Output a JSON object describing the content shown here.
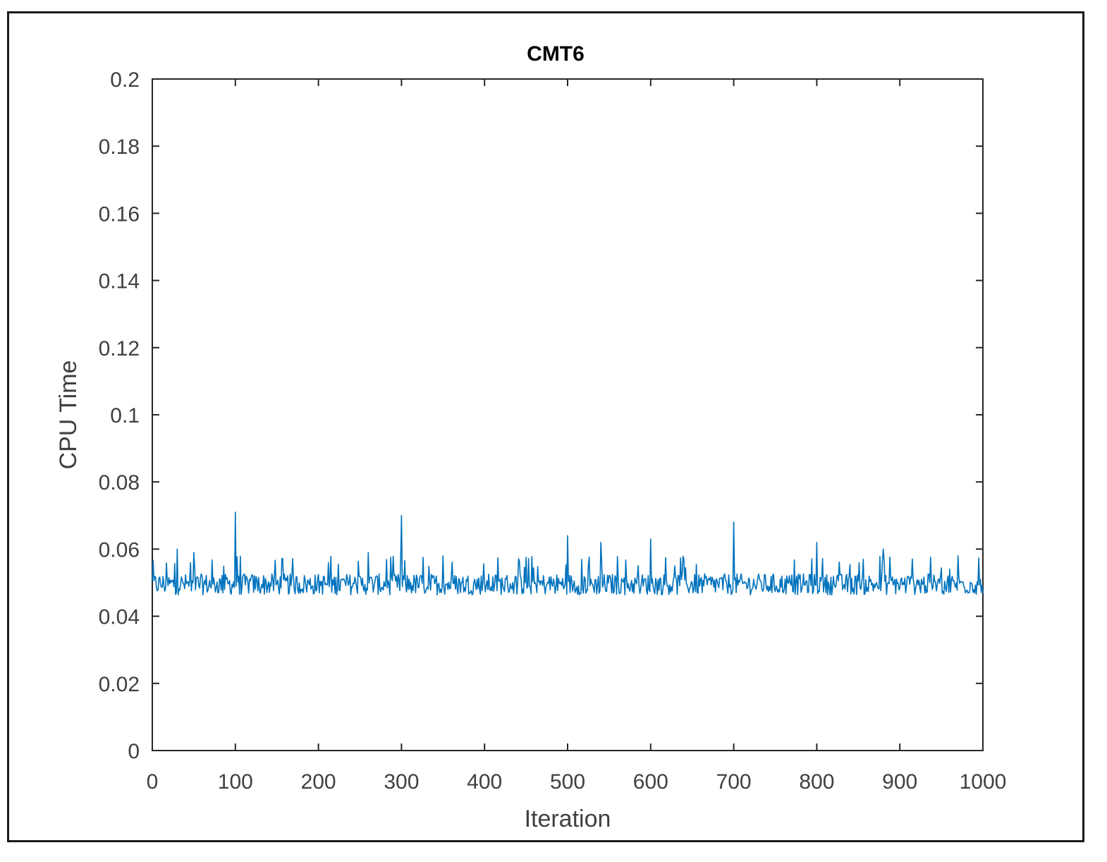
{
  "chart_data": {
    "type": "line",
    "title": "CMT6",
    "xlabel": "Iteration",
    "ylabel": "CPU Time",
    "xlim": [
      0,
      1000
    ],
    "ylim": [
      0,
      0.2
    ],
    "xticks": [
      0,
      100,
      200,
      300,
      400,
      500,
      600,
      700,
      800,
      900,
      1000
    ],
    "yticks": [
      0,
      0.02,
      0.04,
      0.06,
      0.08,
      0.1,
      0.12,
      0.14,
      0.16,
      0.18,
      0.2
    ],
    "ytick_labels": [
      "0",
      "0.02",
      "0.04",
      "0.06",
      "0.08",
      "0.1",
      "0.12",
      "0.14",
      "0.16",
      "0.18",
      "0.2"
    ],
    "xtick_labels": [
      "0",
      "100",
      "200",
      "300",
      "400",
      "500",
      "600",
      "700",
      "800",
      "900",
      "1000"
    ],
    "grid": false,
    "series": [
      {
        "color": "#0072BD",
        "baseline": 0.049,
        "noise_range": [
          0.045,
          0.054
        ],
        "spikes": [
          {
            "x": 30,
            "y": 0.06
          },
          {
            "x": 50,
            "y": 0.059
          },
          {
            "x": 100,
            "y": 0.071
          },
          {
            "x": 300,
            "y": 0.07
          },
          {
            "x": 260,
            "y": 0.059
          },
          {
            "x": 350,
            "y": 0.058
          },
          {
            "x": 500,
            "y": 0.064
          },
          {
            "x": 540,
            "y": 0.062
          },
          {
            "x": 600,
            "y": 0.063
          },
          {
            "x": 700,
            "y": 0.068
          },
          {
            "x": 800,
            "y": 0.062
          },
          {
            "x": 880,
            "y": 0.06
          },
          {
            "x": 970,
            "y": 0.058
          }
        ]
      }
    ]
  }
}
